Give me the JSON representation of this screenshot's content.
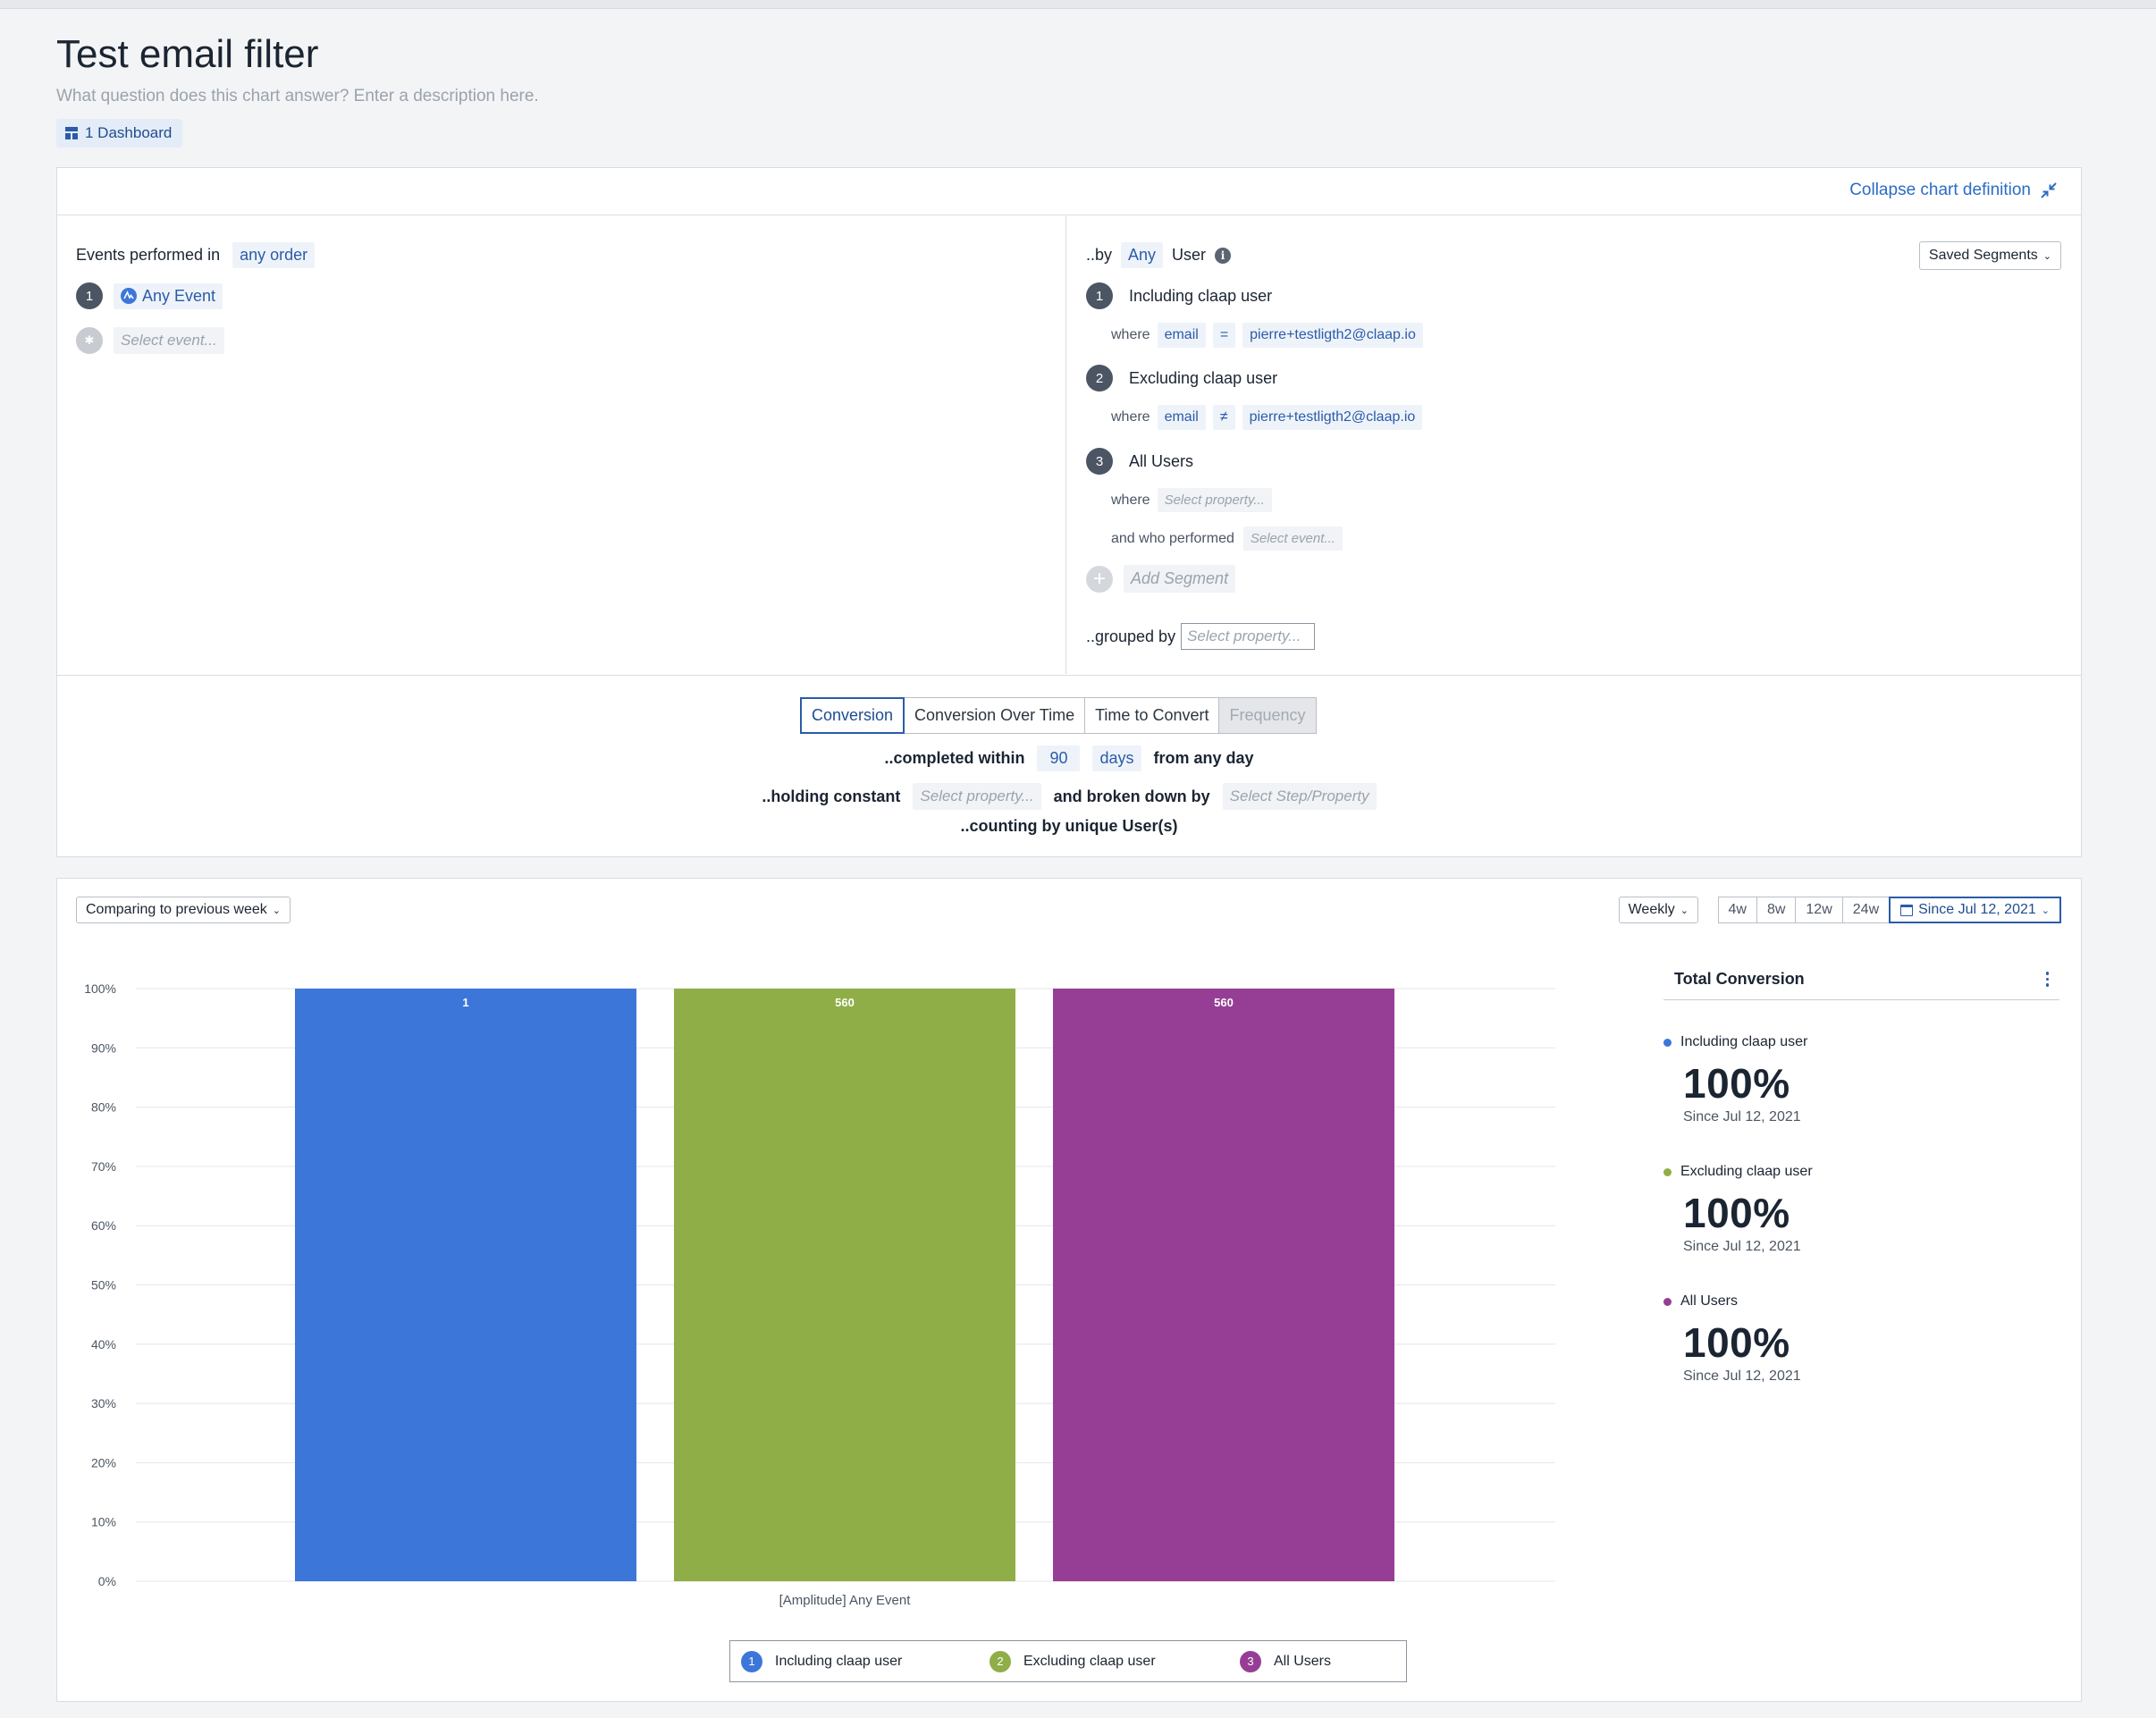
{
  "header": {
    "title": "Test email filter",
    "description_placeholder": "What question does this chart answer? Enter a description here.",
    "dashboard_chip": "1 Dashboard"
  },
  "definition": {
    "collapse_label": "Collapse chart definition",
    "events": {
      "prefix": "Events performed in",
      "order": "any order",
      "step1_num": "1",
      "step1_event": "Any Event",
      "select_placeholder": "Select event..."
    },
    "segments": {
      "by_prefix": "..by",
      "by_any": "Any",
      "by_user": "User",
      "saved_segments": "Saved Segments",
      "items": [
        {
          "num": "1",
          "name": "Including claap user",
          "where": "where",
          "prop": "email",
          "op": "=",
          "value": "pierre+testligth2@claap.io"
        },
        {
          "num": "2",
          "name": "Excluding claap user",
          "where": "where",
          "prop": "email",
          "op": "≠",
          "value": "pierre+testligth2@claap.io"
        },
        {
          "num": "3",
          "name": "All Users",
          "where": "where",
          "prop_placeholder": "Select property...",
          "who_performed": "and who performed",
          "event_placeholder": "Select event..."
        }
      ],
      "add_segment": "Add Segment",
      "grouped_by": "..grouped by",
      "grouped_placeholder": "Select property..."
    },
    "tabs": [
      {
        "label": "Conversion",
        "state": "active"
      },
      {
        "label": "Conversion Over Time",
        "state": "normal"
      },
      {
        "label": "Time to Convert",
        "state": "normal"
      },
      {
        "label": "Frequency",
        "state": "disabled"
      }
    ],
    "completed_within": "..completed within",
    "window_value": "90",
    "window_unit": "days",
    "from_any_day": "from any day",
    "holding_constant": "..holding constant",
    "holding_placeholder": "Select property...",
    "broken_down_by": "and broken down by",
    "broken_placeholder": "Select Step/Property",
    "counting_by": "..counting by unique User(s)"
  },
  "chart_controls": {
    "compare": "Comparing to previous week",
    "interval": "Weekly",
    "ranges": [
      "4w",
      "8w",
      "12w",
      "24w"
    ],
    "active_range": "Since Jul 12, 2021"
  },
  "chart_data": {
    "type": "bar",
    "categories": [
      "[Amplitude] Any Event"
    ],
    "xlabel": "[Amplitude] Any Event",
    "ylim": [
      0,
      100
    ],
    "yticks": [
      "0%",
      "10%",
      "20%",
      "30%",
      "40%",
      "50%",
      "60%",
      "70%",
      "80%",
      "90%",
      "100%"
    ],
    "series": [
      {
        "name": "Including claap user",
        "values": [
          100
        ],
        "label": "1",
        "color": "#3d76d9"
      },
      {
        "name": "Excluding claap user",
        "values": [
          100
        ],
        "label": "560",
        "color": "#8fae47"
      },
      {
        "name": "All Users",
        "values": [
          100
        ],
        "label": "560",
        "color": "#963e95"
      }
    ],
    "legend": "bottom"
  },
  "summary": {
    "title": "Total Conversion",
    "items": [
      {
        "name": "Including claap user",
        "value": "100%",
        "since": "Since Jul 12, 2021",
        "color": "#3d76d9"
      },
      {
        "name": "Excluding claap user",
        "value": "100%",
        "since": "Since Jul 12, 2021",
        "color": "#8fae47"
      },
      {
        "name": "All Users",
        "value": "100%",
        "since": "Since Jul 12, 2021",
        "color": "#963e95"
      }
    ]
  },
  "legend": [
    {
      "num": "1",
      "name": "Including claap user"
    },
    {
      "num": "2",
      "name": "Excluding claap user"
    },
    {
      "num": "3",
      "name": "All Users"
    }
  ]
}
